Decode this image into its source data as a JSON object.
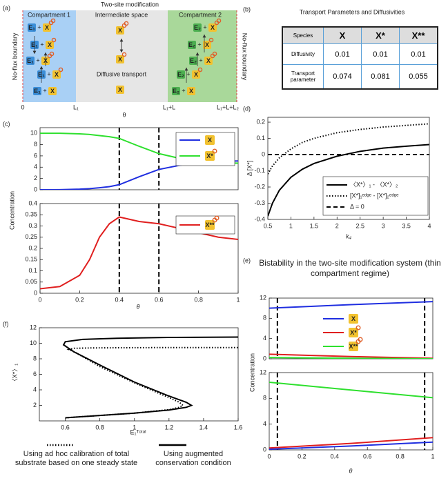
{
  "panel_labels": [
    "(a)",
    "(b)",
    "(c)",
    "(d)",
    "(e)",
    "(f)"
  ],
  "diagram": {
    "title": "Two-site modification",
    "compartment_1": "Compartment 1",
    "intermediate": "Intermediate space",
    "compartment_2": "Compartment 2",
    "transport": "Diffusive transport",
    "boundary_left": "No-flux boundary",
    "boundary_right": "No-flux boundary",
    "axis": [
      "0",
      "L₁",
      "θ",
      "L₁+L",
      "L₁+L+L₂"
    ],
    "species": [
      "E₁",
      "X",
      "E₂"
    ],
    "plus": "+"
  },
  "table": {
    "title": "Transport Parameters and Diffusivities",
    "header": [
      "Species",
      "X",
      "X*",
      "X**"
    ],
    "rows": [
      [
        "Diffusivity",
        0.01,
        0.01,
        0.01
      ],
      [
        "Transport parameter",
        0.074,
        0.081,
        0.055
      ]
    ]
  },
  "chart_data": [
    {
      "type": "line",
      "xlim": [
        0,
        1
      ],
      "ylim": [
        0,
        11
      ],
      "yticks": [
        0,
        2,
        4,
        6,
        8,
        10
      ],
      "x": [
        0,
        0.1,
        0.2,
        0.25,
        0.3,
        0.35,
        0.4,
        0.5,
        0.6,
        0.7,
        0.8,
        0.9,
        1
      ],
      "vlines": [
        0.4,
        0.6
      ],
      "legend": "upper right",
      "series": [
        {
          "name": "X",
          "color": "#1f2ee0",
          "values": [
            0,
            0.02,
            0.1,
            0.2,
            0.35,
            0.55,
            0.9,
            2.3,
            3.6,
            4.3,
            4.8,
            5.0,
            5.1
          ]
        },
        {
          "name": "X*",
          "color": "#2ee02e",
          "values": [
            10,
            10,
            9.9,
            9.8,
            9.6,
            9.4,
            9.1,
            7.7,
            6.4,
            5.6,
            5.0,
            4.8,
            4.7
          ]
        }
      ]
    },
    {
      "type": "line",
      "xlim": [
        0,
        1
      ],
      "ylim": [
        0,
        0.4
      ],
      "yticks": [
        0,
        0.05,
        0.1,
        0.15,
        0.2,
        0.25,
        0.3,
        0.35,
        0.4
      ],
      "xticks": [
        0,
        0.2,
        0.4,
        0.6,
        0.8,
        1
      ],
      "xlabel": "θ",
      "ylabel": "Concentration",
      "x": [
        0,
        0.1,
        0.2,
        0.25,
        0.3,
        0.35,
        0.4,
        0.5,
        0.6,
        0.7,
        0.8,
        0.9,
        1
      ],
      "vlines": [
        0.4,
        0.6
      ],
      "legend": "upper right",
      "series": [
        {
          "name": "X**",
          "color": "#e01f1f",
          "values": [
            0.02,
            0.03,
            0.08,
            0.15,
            0.25,
            0.31,
            0.34,
            0.32,
            0.31,
            0.29,
            0.27,
            0.25,
            0.24
          ]
        }
      ]
    },
    {
      "type": "line",
      "xlim": [
        0.5,
        4
      ],
      "ylim": [
        -0.4,
        0.23
      ],
      "xticks": [
        0.5,
        1,
        1.5,
        2,
        2.5,
        3,
        3.5,
        4
      ],
      "yticks": [
        -0.4,
        -0.3,
        -0.2,
        -0.1,
        0,
        0.1,
        0.2
      ],
      "xlabel": "k₄",
      "ylabel": "Δ [X*]",
      "x": [
        0.5,
        0.6,
        0.75,
        1,
        1.25,
        1.5,
        2,
        2.5,
        3,
        3.5,
        4
      ],
      "legend": "lower right",
      "series": [
        {
          "name": "〈X*〉₁ - 〈X*〉₂",
          "color": "#000000",
          "style": "solid",
          "values": [
            -0.38,
            -0.3,
            -0.22,
            -0.14,
            -0.09,
            -0.055,
            -0.01,
            0.02,
            0.04,
            0.052,
            0.062
          ]
        },
        {
          "name": "[X*]₁ᵉᵈᵍᵉ - [X*]₂ᵉᵈᵍᵉ",
          "color": "#000000",
          "style": "dotted",
          "values": [
            -0.12,
            -0.07,
            -0.02,
            0.035,
            0.075,
            0.1,
            0.135,
            0.155,
            0.17,
            0.18,
            0.19
          ]
        },
        {
          "name": "Δ = 0",
          "color": "#000000",
          "style": "dashed",
          "values": [
            0,
            0,
            0,
            0,
            0,
            0,
            0,
            0,
            0,
            0,
            0
          ]
        }
      ]
    },
    {
      "type": "line",
      "title": "Bistability in the two-site modification system (thin compartment regime)",
      "xlim": [
        0,
        1
      ],
      "ylim": [
        0,
        12
      ],
      "yticks": [
        0,
        4,
        8,
        12
      ],
      "x": [
        0,
        0.5,
        1
      ],
      "vlines": [
        0.05,
        0.95
      ],
      "legend": "center",
      "series": [
        {
          "name": "X",
          "color": "#1f2ee0",
          "values": [
            10,
            10.7,
            11.3
          ]
        },
        {
          "name": "X*",
          "color": "#e01f1f",
          "values": [
            0.9,
            0.45,
            0.1
          ]
        },
        {
          "name": "X**",
          "color": "#2ee02e",
          "values": [
            0.25,
            0.1,
            0
          ]
        }
      ]
    },
    {
      "type": "line",
      "xlim": [
        0,
        1
      ],
      "ylim": [
        0,
        12
      ],
      "yticks": [
        0,
        4,
        8,
        12
      ],
      "xticks": [
        0,
        0.2,
        0.4,
        0.6,
        0.8,
        1
      ],
      "xlabel": "θ",
      "ylabel": "Concentration",
      "x": [
        0,
        0.5,
        1
      ],
      "vlines": [
        0.05,
        0.95
      ],
      "series": [
        {
          "name": "X**",
          "color": "#2ee02e",
          "values": [
            10.5,
            9.3,
            8.1
          ]
        },
        {
          "name": "X*",
          "color": "#e01f1f",
          "values": [
            0.3,
            1.0,
            1.9
          ]
        },
        {
          "name": "X",
          "color": "#1f2ee0",
          "values": [
            0.1,
            0.6,
            1.2
          ]
        }
      ]
    },
    {
      "type": "line",
      "xlim": [
        0.45,
        1.6
      ],
      "ylim": [
        0,
        12
      ],
      "xticks": [
        0.6,
        0.8,
        1,
        1.2,
        1.4,
        1.6
      ],
      "yticks": [
        2,
        4,
        6,
        8,
        10,
        12
      ],
      "xlabel": "E₁ᵀᵒᵗᵃˡ",
      "ylabel": "〈X*〉₁",
      "legend": "below",
      "series": [
        {
          "name": "Using ad hoc calibration of total substrate based on one steady state",
          "color": "#000000",
          "style": "dotted",
          "x": [
            0.6,
            0.8,
            1.0,
            1.2,
            1.26,
            1.28,
            1.26,
            1.2,
            1.0,
            0.8,
            0.66,
            0.62,
            0.65,
            0.75,
            0.9,
            1.2,
            1.6
          ],
          "values": [
            0.4,
            0.7,
            1.0,
            1.45,
            1.75,
            2.0,
            2.4,
            3.0,
            4.9,
            7.0,
            8.8,
            9.2,
            9.35,
            9.4,
            9.42,
            9.45,
            9.45
          ]
        },
        {
          "name": "Using augmented conservation condition",
          "color": "#000000",
          "style": "solid",
          "x": [
            0.6,
            0.8,
            1.0,
            1.2,
            1.3,
            1.33,
            1.3,
            1.2,
            1.0,
            0.8,
            0.65,
            0.59,
            0.6,
            0.7,
            0.9,
            1.2,
            1.6
          ],
          "values": [
            0.4,
            0.7,
            1.0,
            1.4,
            1.75,
            2.0,
            2.4,
            3.2,
            5.0,
            7.2,
            8.9,
            9.8,
            10.2,
            10.5,
            10.65,
            10.75,
            10.8
          ]
        }
      ]
    }
  ]
}
